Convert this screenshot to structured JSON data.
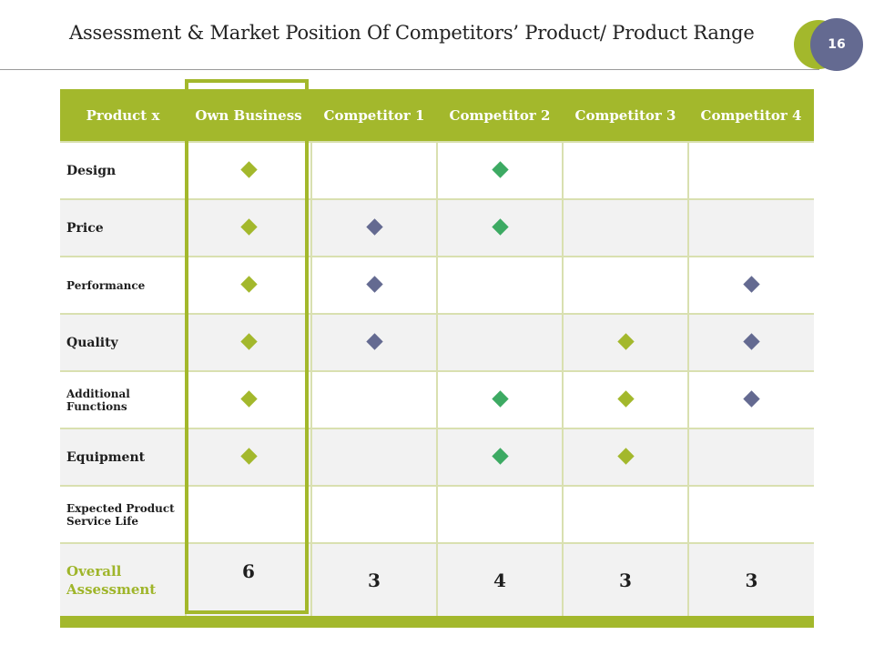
{
  "title": "Assessment & Market Position Of Competitors’ Product/ Product Range",
  "page_number": "16",
  "colors": {
    "accent_green": "#a3b82c",
    "badge_purple": "#646a91",
    "diamond_olive": "#a3b82c",
    "diamond_green": "#3daa63",
    "diamond_purple": "#646a91",
    "overall_label": "#9fb52a"
  },
  "table": {
    "headers": [
      "Product x",
      "Own Business",
      "Competitor 1",
      "Competitor 2",
      "Competitor 3",
      "Competitor 4"
    ],
    "rows": [
      {
        "label": "Design",
        "marks": [
          "olive",
          "",
          "green",
          "",
          ""
        ]
      },
      {
        "label": "Price",
        "marks": [
          "olive",
          "purple",
          "green",
          "",
          ""
        ]
      },
      {
        "label": "Performance",
        "marks": [
          "olive",
          "purple",
          "",
          "",
          "purple"
        ]
      },
      {
        "label": "Quality",
        "marks": [
          "olive",
          "purple",
          "",
          "olive",
          "purple"
        ]
      },
      {
        "label": "Additional Functions",
        "marks": [
          "olive",
          "",
          "green",
          "olive",
          "purple"
        ]
      },
      {
        "label": "Equipment",
        "marks": [
          "olive",
          "",
          "green",
          "olive",
          ""
        ]
      },
      {
        "label": "Expected Product Service Life",
        "marks": [
          "",
          "",
          "",
          "",
          ""
        ]
      }
    ],
    "overall": {
      "label": "Overall Assessment",
      "scores": [
        "6",
        "3",
        "4",
        "3",
        "3"
      ]
    }
  }
}
